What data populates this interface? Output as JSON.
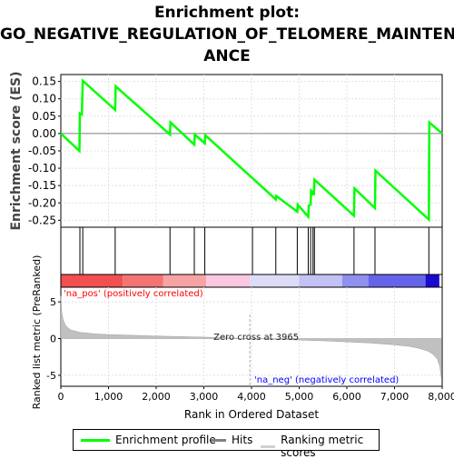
{
  "title_lines": [
    "Enrichment plot:",
    "GO_NEGATIVE_REGULATION_OF_TELOMERE_MAINTEN",
    "ANCE"
  ],
  "colors": {
    "enrichment_line": "#00ff00",
    "hits": "#000000",
    "zero_line": "#808080",
    "grid": "#e0e0e0",
    "metric_fill": "#c0c0c0",
    "pos_label": "#ff0000",
    "neg_label": "#0000ff",
    "zero_cross_line": "#b0b0b0"
  },
  "chart_data": [
    {
      "type": "line",
      "name": "enrichment-profile",
      "ylabel": "Enrichment score (ES)",
      "ylim": [
        -0.27,
        0.17
      ],
      "xlim": [
        0,
        8000
      ],
      "yticks": [
        "0.15",
        "0.10",
        "0.05",
        "0.00",
        "-0.05",
        "-0.10",
        "-0.15",
        "-0.20",
        "-0.25"
      ],
      "ytick_values": [
        0.15,
        0.1,
        0.05,
        0.0,
        -0.05,
        -0.1,
        -0.15,
        -0.2,
        -0.25
      ],
      "grid": true,
      "points": [
        [
          0,
          0.0
        ],
        [
          390,
          -0.05
        ],
        [
          400,
          0.058
        ],
        [
          440,
          0.055
        ],
        [
          460,
          0.152
        ],
        [
          1140,
          0.068
        ],
        [
          1150,
          0.136
        ],
        [
          2290,
          -0.003
        ],
        [
          2300,
          0.032
        ],
        [
          2800,
          -0.032
        ],
        [
          2810,
          -0.003
        ],
        [
          3020,
          -0.028
        ],
        [
          3030,
          -0.005
        ],
        [
          4510,
          -0.19
        ],
        [
          4520,
          -0.18
        ],
        [
          4960,
          -0.225
        ],
        [
          4970,
          -0.205
        ],
        [
          5190,
          -0.24
        ],
        [
          5200,
          -0.208
        ],
        [
          5240,
          -0.205
        ],
        [
          5250,
          -0.165
        ],
        [
          5280,
          -0.17
        ],
        [
          5290,
          -0.175
        ],
        [
          5310,
          -0.175
        ],
        [
          5320,
          -0.133
        ],
        [
          6150,
          -0.237
        ],
        [
          6160,
          -0.158
        ],
        [
          6590,
          -0.215
        ],
        [
          6600,
          -0.107
        ],
        [
          7720,
          -0.248
        ],
        [
          7730,
          0.032
        ],
        [
          8000,
          0.0
        ]
      ]
    },
    {
      "type": "scatter",
      "name": "hits",
      "x": [
        400,
        460,
        1140,
        2290,
        2800,
        3020,
        4020,
        4510,
        4960,
        5190,
        5240,
        5290,
        5320,
        6150,
        6590,
        7720
      ]
    },
    {
      "type": "area",
      "name": "ranked-metric",
      "xlabel": "Rank in Ordered Dataset",
      "ylabel": "Ranked list metric (PreRanked)",
      "xlim": [
        0,
        8000
      ],
      "ylim": [
        -6.5,
        7.0
      ],
      "yticks": [
        "5",
        "0",
        "-5"
      ],
      "ytick_values": [
        5,
        0,
        -5
      ],
      "xticks": [
        "0",
        "1,000",
        "2,000",
        "3,000",
        "4,000",
        "5,000",
        "6,000",
        "7,000",
        "8,000"
      ],
      "xtick_values": [
        0,
        1000,
        2000,
        3000,
        4000,
        5000,
        6000,
        7000,
        8000
      ],
      "x": [
        0,
        20,
        50,
        100,
        200,
        400,
        700,
        1000,
        1500,
        2000,
        3000,
        3965,
        4500,
        5000,
        5500,
        6000,
        6500,
        7000,
        7300,
        7500,
        7700,
        7800,
        7900,
        7950,
        7990
      ],
      "values": [
        5.8,
        3.5,
        2.5,
        1.8,
        1.2,
        0.85,
        0.65,
        0.55,
        0.45,
        0.35,
        0.2,
        0.0,
        -0.1,
        -0.2,
        -0.3,
        -0.45,
        -0.6,
        -0.85,
        -1.05,
        -1.3,
        -1.7,
        -2.1,
        -2.8,
        -3.8,
        -5.8
      ],
      "zero_cross_label": "Zero cross at 3965",
      "zero_cross": 3965,
      "pos_label": "'na_pos' (positively correlated)",
      "neg_label": "'na_neg' (negatively correlated)"
    },
    {
      "type": "heatmap",
      "name": "rank-colorbar",
      "segments": [
        {
          "from": 0,
          "to": 1300,
          "color": "#f24f4f"
        },
        {
          "from": 1300,
          "to": 2150,
          "color": "#f57373"
        },
        {
          "from": 2150,
          "to": 3050,
          "color": "#f8a3a3"
        },
        {
          "from": 3050,
          "to": 3965,
          "color": "#fcc7e1"
        },
        {
          "from": 3965,
          "to": 5000,
          "color": "#dcdcf8"
        },
        {
          "from": 5000,
          "to": 5900,
          "color": "#c2c2f4"
        },
        {
          "from": 5900,
          "to": 6450,
          "color": "#9090ee"
        },
        {
          "from": 6450,
          "to": 7650,
          "color": "#6464ea"
        },
        {
          "from": 7650,
          "to": 7940,
          "color": "#1a0ad0"
        }
      ]
    }
  ],
  "legend": {
    "items": [
      {
        "label": "Enrichment profile",
        "color": "#00ff00"
      },
      {
        "label": "Hits",
        "color": "#808080"
      },
      {
        "label": "Ranking metric scores",
        "color": "#d0d0d0"
      }
    ]
  }
}
